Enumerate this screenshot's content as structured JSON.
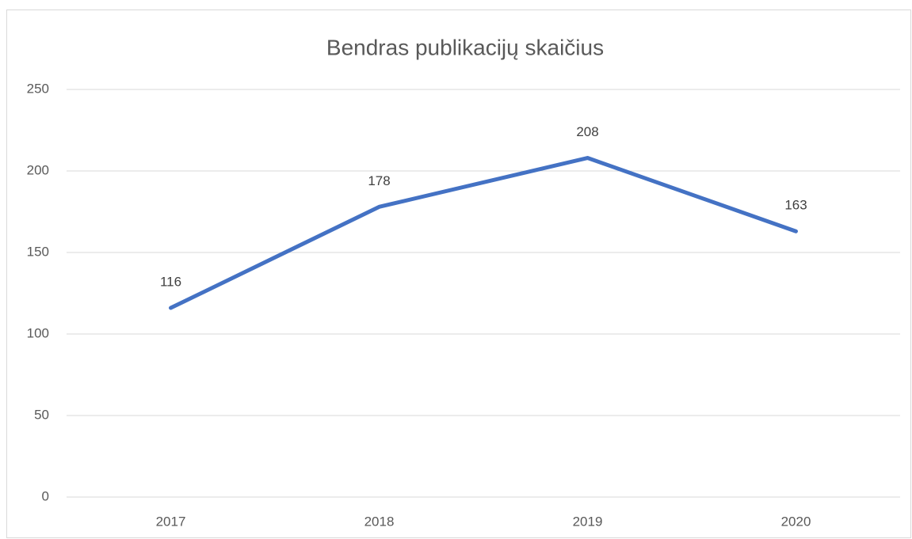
{
  "chart_data": {
    "type": "line",
    "title": "Bendras publikacijų skaičius",
    "categories": [
      "2017",
      "2018",
      "2019",
      "2020"
    ],
    "values": [
      116,
      178,
      208,
      163
    ],
    "color": "#4472c4",
    "ylim": [
      0,
      250
    ],
    "yticks": [
      0,
      50,
      100,
      150,
      200,
      250
    ],
    "grid": true
  }
}
